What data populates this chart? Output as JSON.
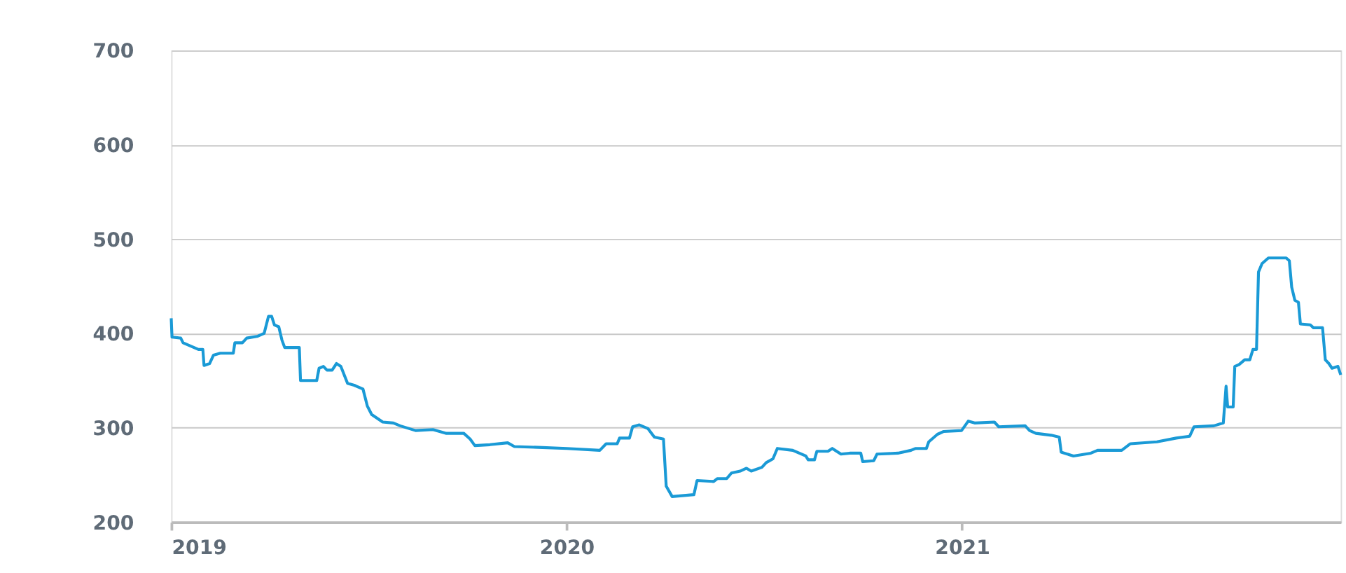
{
  "chart_data": {
    "type": "line",
    "x": [
      2019.0,
      2019.002,
      2019.024,
      2019.03,
      2019.069,
      2019.08,
      2019.083,
      2019.097,
      2019.107,
      2019.124,
      2019.157,
      2019.161,
      2019.18,
      2019.191,
      2019.219,
      2019.235,
      2019.246,
      2019.254,
      2019.261,
      2019.272,
      2019.28,
      2019.287,
      2019.324,
      2019.327,
      2019.368,
      2019.374,
      2019.385,
      2019.394,
      2019.407,
      2019.418,
      2019.429,
      2019.446,
      2019.463,
      2019.485,
      2019.496,
      2019.507,
      2019.535,
      2019.562,
      2019.579,
      2019.618,
      2019.662,
      2019.696,
      2019.74,
      2019.756,
      2019.768,
      2019.806,
      2019.851,
      2019.868,
      2019.939,
      2020.001,
      2020.084,
      2020.1,
      2020.128,
      2020.134,
      2020.159,
      2020.167,
      2020.184,
      2020.206,
      2020.222,
      2020.245,
      2020.252,
      2020.267,
      2020.322,
      2020.33,
      2020.372,
      2020.381,
      2020.405,
      2020.417,
      2020.439,
      2020.455,
      2020.467,
      2020.494,
      2020.505,
      2020.522,
      2020.533,
      2020.572,
      2020.605,
      2020.611,
      2020.627,
      2020.633,
      2020.661,
      2020.672,
      2020.694,
      2020.716,
      2020.744,
      2020.749,
      2020.777,
      2020.785,
      2020.838,
      2020.871,
      2020.883,
      2020.91,
      2020.916,
      2020.938,
      2020.954,
      2020.999,
      2021.016,
      2021.032,
      2021.082,
      2021.093,
      2021.16,
      2021.171,
      2021.187,
      2021.226,
      2021.246,
      2021.251,
      2021.282,
      2021.326,
      2021.343,
      2021.404,
      2021.426,
      2021.493,
      2021.542,
      2021.576,
      2021.587,
      2021.637,
      2021.661,
      2021.668,
      2021.672,
      2021.686,
      2021.69,
      2021.701,
      2021.715,
      2021.728,
      2021.736,
      2021.745,
      2021.75,
      2021.759,
      2021.775,
      2021.82,
      2021.828,
      2021.834,
      2021.842,
      2021.851,
      2021.856,
      2021.881,
      2021.889,
      2021.912,
      2021.919,
      2021.928,
      2021.936,
      2021.951,
      2021.958
    ],
    "series": [
      {
        "color": "#1a9ad6",
        "values": [
          416,
          396,
          395,
          390,
          383,
          383,
          366,
          368,
          377,
          379,
          379,
          390,
          390,
          395,
          397,
          400,
          418,
          418,
          409,
          407,
          393,
          385,
          385,
          350,
          350,
          363,
          365,
          361,
          361,
          368,
          365,
          347,
          345,
          341,
          323,
          314,
          306,
          305,
          302,
          297,
          298,
          294,
          294,
          288,
          281,
          282,
          284,
          280,
          279,
          278,
          276,
          283,
          283,
          289,
          289,
          301,
          303,
          299,
          290,
          288,
          238,
          227,
          229,
          244,
          243,
          246,
          246,
          252,
          254,
          257,
          254,
          258,
          263,
          267,
          278,
          276,
          270,
          266,
          266,
          275,
          275,
          278,
          272,
          273,
          273,
          264,
          265,
          272,
          273,
          276,
          278,
          278,
          285,
          293,
          296,
          297,
          307,
          305,
          306,
          301,
          302,
          297,
          294,
          292,
          290,
          274,
          270,
          273,
          276,
          276,
          283,
          285,
          289,
          291,
          301,
          302,
          305,
          344,
          322,
          322,
          365,
          367,
          372,
          372,
          383,
          383,
          465,
          474,
          480,
          480,
          477,
          449,
          435,
          433,
          410,
          409,
          406,
          406,
          372,
          368,
          363,
          365,
          356
        ]
      }
    ],
    "xlim": [
      2019.0,
      2021.958
    ],
    "xticks": [
      2019,
      2020,
      2021
    ],
    "ylim": [
      200,
      700
    ],
    "yticks": [
      200,
      300,
      400,
      500,
      600,
      700
    ],
    "grid": "y",
    "line_style": "solid",
    "marker": "none"
  }
}
